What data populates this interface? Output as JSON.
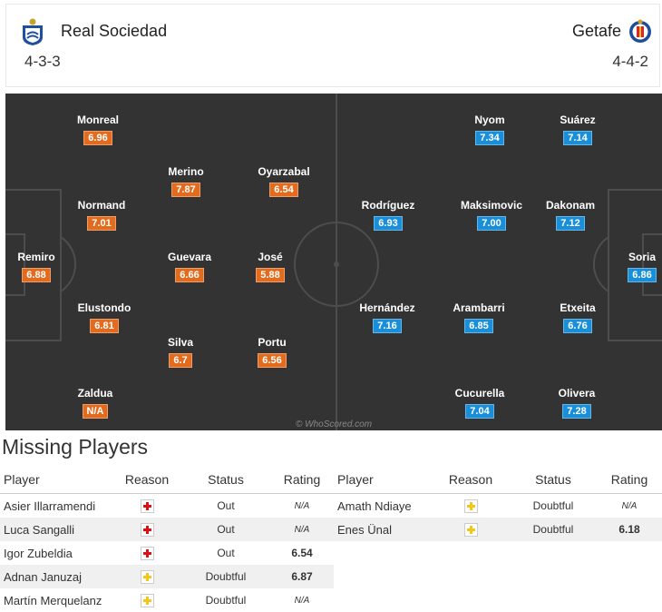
{
  "header": {
    "home": {
      "name": "Real Sociedad",
      "formation": "4-3-3",
      "crest_icon": "real-sociedad-crest-icon"
    },
    "away": {
      "name": "Getafe",
      "formation": "4-4-2",
      "crest_icon": "getafe-crest-icon"
    }
  },
  "colors": {
    "home_rating": "#e26b1e",
    "away_rating": "#1a8fd9",
    "pitch": "#333333",
    "lines": "#4d4d4d"
  },
  "pitch": {
    "watermark": "© WhoScored.com",
    "home_players": [
      {
        "name": "Monreal",
        "rating": "6.96"
      },
      {
        "name": "Merino",
        "rating": "7.87"
      },
      {
        "name": "Oyarzabal",
        "rating": "6.54"
      },
      {
        "name": "Normand",
        "rating": "7.01"
      },
      {
        "name": "Remiro",
        "rating": "6.88"
      },
      {
        "name": "Guevara",
        "rating": "6.66"
      },
      {
        "name": "José",
        "rating": "5.88"
      },
      {
        "name": "Elustondo",
        "rating": "6.81"
      },
      {
        "name": "Silva",
        "rating": "6.7"
      },
      {
        "name": "Portu",
        "rating": "6.56"
      },
      {
        "name": "Zaldua",
        "rating": "N/A"
      }
    ],
    "away_players": [
      {
        "name": "Nyom",
        "rating": "7.34"
      },
      {
        "name": "Suárez",
        "rating": "7.14"
      },
      {
        "name": "Rodríguez",
        "rating": "6.93"
      },
      {
        "name": "Maksimovic",
        "rating": "7.00"
      },
      {
        "name": "Dakonam",
        "rating": "7.12"
      },
      {
        "name": "Soria",
        "rating": "6.86"
      },
      {
        "name": "Hernández",
        "rating": "7.16"
      },
      {
        "name": "Arambarri",
        "rating": "6.85"
      },
      {
        "name": "Etxeita",
        "rating": "6.76"
      },
      {
        "name": "Cucurella",
        "rating": "7.04"
      },
      {
        "name": "Olivera",
        "rating": "7.28"
      }
    ]
  },
  "missing": {
    "title": "Missing Players",
    "columns": {
      "player": "Player",
      "reason": "Reason",
      "status": "Status",
      "rating": "Rating"
    },
    "home": [
      {
        "player": "Asier Illarramendi",
        "reason": "injury-icon",
        "status": "Out",
        "rating": "N/A"
      },
      {
        "player": "Luca Sangalli",
        "reason": "injury-icon",
        "status": "Out",
        "rating": "N/A"
      },
      {
        "player": "Igor Zubeldia",
        "reason": "injury-icon",
        "status": "Out",
        "rating": "6.54"
      },
      {
        "player": "Adnan Januzaj",
        "reason": "doubtful-icon",
        "status": "Doubtful",
        "rating": "6.87"
      },
      {
        "player": "Martín Merquelanz",
        "reason": "doubtful-icon",
        "status": "Doubtful",
        "rating": "N/A"
      }
    ],
    "away": [
      {
        "player": "Amath Ndiaye",
        "reason": "doubtful-icon",
        "status": "Doubtful",
        "rating": "N/A"
      },
      {
        "player": "Enes Ünal",
        "reason": "doubtful-icon",
        "status": "Doubtful",
        "rating": "6.18"
      }
    ]
  }
}
